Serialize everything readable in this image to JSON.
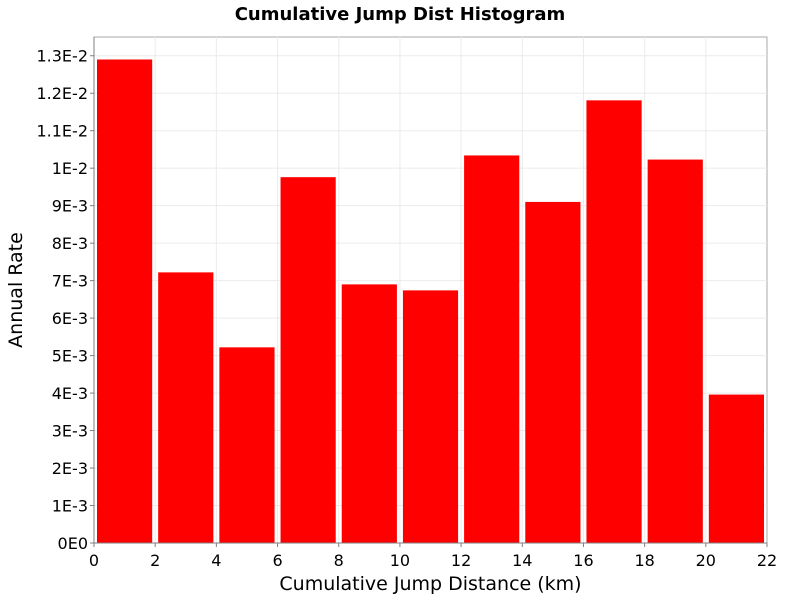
{
  "chart_data": {
    "type": "bar",
    "title": "Cumulative Jump Dist Histogram",
    "xlabel": "Cumulative Jump Distance (km)",
    "ylabel": "Annual Rate",
    "xlim": [
      0,
      22
    ],
    "ylim": [
      0,
      0.0135
    ],
    "grid": true,
    "legend": "none",
    "bar_color": "#ff0000",
    "x_ticks": [
      {
        "value": 0,
        "label": "0"
      },
      {
        "value": 2,
        "label": "2"
      },
      {
        "value": 4,
        "label": "4"
      },
      {
        "value": 6,
        "label": "6"
      },
      {
        "value": 8,
        "label": "8"
      },
      {
        "value": 10,
        "label": "10"
      },
      {
        "value": 12,
        "label": "12"
      },
      {
        "value": 14,
        "label": "14"
      },
      {
        "value": 16,
        "label": "16"
      },
      {
        "value": 18,
        "label": "18"
      },
      {
        "value": 20,
        "label": "20"
      },
      {
        "value": 22,
        "label": "22"
      }
    ],
    "y_ticks": [
      {
        "value": 0,
        "label": "0E0"
      },
      {
        "value": 0.001,
        "label": "1E-3"
      },
      {
        "value": 0.002,
        "label": "2E-3"
      },
      {
        "value": 0.003,
        "label": "3E-3"
      },
      {
        "value": 0.004,
        "label": "4E-3"
      },
      {
        "value": 0.005,
        "label": "5E-3"
      },
      {
        "value": 0.006,
        "label": "6E-3"
      },
      {
        "value": 0.007,
        "label": "7E-3"
      },
      {
        "value": 0.008,
        "label": "8E-3"
      },
      {
        "value": 0.009,
        "label": "9E-3"
      },
      {
        "value": 0.01,
        "label": "1E-2"
      },
      {
        "value": 0.011,
        "label": "1.1E-2"
      },
      {
        "value": 0.012,
        "label": "1.2E-2"
      },
      {
        "value": 0.013,
        "label": "1.3E-2"
      }
    ],
    "bins": [
      {
        "x0": 0,
        "x1": 2,
        "value": 0.0129
      },
      {
        "x0": 2,
        "x1": 4,
        "value": 0.00722
      },
      {
        "x0": 4,
        "x1": 6,
        "value": 0.00522
      },
      {
        "x0": 6,
        "x1": 8,
        "value": 0.00976
      },
      {
        "x0": 8,
        "x1": 10,
        "value": 0.0069
      },
      {
        "x0": 10,
        "x1": 12,
        "value": 0.00674
      },
      {
        "x0": 12,
        "x1": 14,
        "value": 0.01034
      },
      {
        "x0": 14,
        "x1": 16,
        "value": 0.0091
      },
      {
        "x0": 16,
        "x1": 18,
        "value": 0.01181
      },
      {
        "x0": 18,
        "x1": 20,
        "value": 0.01023
      },
      {
        "x0": 20,
        "x1": 22,
        "value": 0.00396
      }
    ]
  }
}
